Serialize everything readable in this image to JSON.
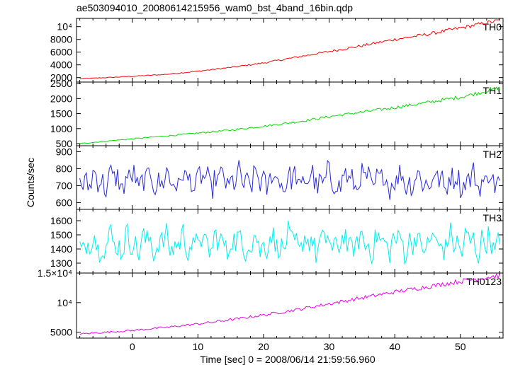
{
  "chart_data": {
    "type": "line",
    "title": "ae503094010_20080614215956_wam0_bst_4band_16bin.qdp",
    "xlabel": "Time [sec] 0 = 2008/06/14 21:59:56.960",
    "ylabel": "Counts/sec",
    "xlim": [
      -8.5,
      56.5
    ],
    "x_ticks": [
      0,
      10,
      20,
      30,
      40,
      50
    ],
    "x_tick_labels": [
      "0",
      "10",
      "20",
      "30",
      "40",
      "50"
    ],
    "panels": [
      {
        "name": "TH0",
        "color": "#ff0000",
        "ylim": [
          1300,
          11300
        ],
        "y_ticks": [
          2000,
          4000,
          6000,
          8000,
          10000
        ],
        "y_tick_labels": [
          "2000",
          "4000",
          "6000",
          "8000",
          "10⁴"
        ],
        "points_t": [
          -8,
          -4,
          0,
          5,
          10,
          15,
          20,
          25,
          30,
          35,
          40,
          45,
          50,
          53,
          56
        ],
        "points_v": [
          1800,
          2000,
          2200,
          2500,
          3000,
          3600,
          4300,
          5200,
          6100,
          7000,
          8000,
          8800,
          9800,
          10400,
          11000
        ]
      },
      {
        "name": "TH1",
        "color": "#00dd00",
        "ylim": [
          430,
          2550
        ],
        "y_ticks": [
          500,
          1000,
          1500,
          2000,
          2500
        ],
        "y_tick_labels": [
          "500",
          "1000",
          "1500",
          "2000",
          "2500"
        ],
        "points_t": [
          -8,
          -4,
          0,
          5,
          10,
          15,
          20,
          25,
          30,
          35,
          40,
          45,
          50,
          53,
          56
        ],
        "points_v": [
          500,
          580,
          660,
          750,
          850,
          950,
          1080,
          1220,
          1400,
          1550,
          1700,
          1870,
          2050,
          2200,
          2350
        ]
      },
      {
        "name": "TH2",
        "color": "#2828e0",
        "ylim": [
          560,
          935
        ],
        "y_ticks": [
          600,
          700,
          800,
          900
        ],
        "y_tick_labels": [
          "600",
          "700",
          "800",
          "900"
        ],
        "mean": 730,
        "amplitude": 85
      },
      {
        "name": "TH3",
        "color": "#00eeee",
        "ylim": [
          1230,
          1680
        ],
        "y_ticks": [
          1300,
          1400,
          1500,
          1600
        ],
        "y_tick_labels": [
          "1300",
          "1400",
          "1500",
          "1600"
        ],
        "mean": 1440,
        "amplitude": 110
      },
      {
        "name": "TH0123",
        "color": "#ee00ee",
        "ylim": [
          4000,
          15000
        ],
        "y_ticks": [
          5000,
          10000,
          15000
        ],
        "y_tick_labels": [
          "5000",
          "10⁴",
          "1.5×10⁴"
        ],
        "points_t": [
          -8,
          -4,
          0,
          5,
          10,
          15,
          20,
          25,
          30,
          35,
          40,
          45,
          50,
          53,
          56
        ],
        "points_v": [
          4700,
          5000,
          5300,
          5800,
          6400,
          7100,
          7900,
          8800,
          9800,
          10800,
          11800,
          12700,
          13600,
          14100,
          14600
        ]
      }
    ]
  }
}
